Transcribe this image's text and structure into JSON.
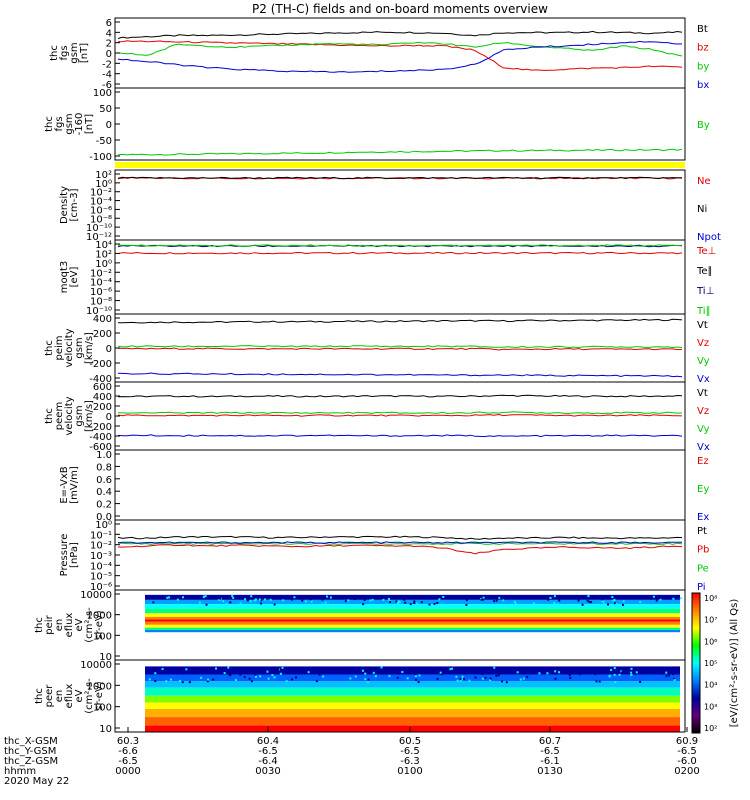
{
  "title": "P2 (TH-C) fields and on-board moments overview",
  "colors": {
    "black": "#000000",
    "red": "#e00000",
    "green": "#00c800",
    "blue": "#0000d0",
    "yellow": "#ffff00"
  },
  "chart_data": [
    {
      "type": "line",
      "ylabel": [
        "thc",
        "fgs",
        "gsm",
        "[nT]"
      ],
      "yticks": [
        "6",
        "4",
        "2",
        "0",
        "-2",
        "-4",
        "-6"
      ],
      "ylim": [
        -6,
        6
      ],
      "series": [
        {
          "name": "Bt",
          "color": "#000000",
          "values": [
            2.6,
            2.8,
            3.0,
            3.0,
            3.1,
            3.2,
            3.3,
            3.4,
            3.5,
            3.6,
            3.5,
            3.4,
            3.0,
            3.5,
            3.5,
            3.5,
            3.6,
            3.5,
            3.4,
            3.6
          ]
        },
        {
          "name": "bz",
          "color": "#e00000",
          "values": [
            2.0,
            2.0,
            1.9,
            1.8,
            1.7,
            1.6,
            1.5,
            1.4,
            1.3,
            1.2,
            1.3,
            1.2,
            0.5,
            -2.5,
            -3.0,
            -2.8,
            -2.6,
            -2.5,
            -2.3,
            -2.4
          ]
        },
        {
          "name": "by",
          "color": "#00c800",
          "values": [
            0.0,
            -0.4,
            1.5,
            1.2,
            1.0,
            1.2,
            1.4,
            1.6,
            1.5,
            1.4,
            1.8,
            1.6,
            1.0,
            1.8,
            1.2,
            0.8,
            0.4,
            1.2,
            0.6,
            -0.6
          ]
        },
        {
          "name": "bx",
          "color": "#0000d0",
          "values": [
            -1.0,
            -1.5,
            -2.0,
            -2.5,
            -2.8,
            -3.0,
            -3.2,
            -3.2,
            -3.3,
            -3.1,
            -3.0,
            -2.8,
            -2.0,
            0.5,
            1.0,
            1.2,
            1.5,
            1.8,
            2.0,
            1.5
          ]
        }
      ]
    },
    {
      "type": "line",
      "ylabel": [
        "thc",
        "fgs",
        "gsm",
        "-160",
        "[nT]"
      ],
      "yticks": [
        "100",
        "50",
        "0",
        "-50",
        "-100"
      ],
      "ylim": [
        -125,
        105
      ],
      "series": [
        {
          "name": "By",
          "color": "#00c800",
          "values": [
            -108,
            -107.5,
            -107,
            -106,
            -105,
            -104,
            -103,
            -102,
            -100,
            -99,
            -98,
            -97,
            -96,
            -95,
            -95,
            -94,
            -94,
            -93,
            -93,
            -92
          ]
        }
      ]
    },
    {
      "type": "line",
      "ylabel": [
        "Density",
        "[cm-3]"
      ],
      "yticks": [
        "10²",
        "10⁰",
        "10⁻²",
        "10⁻⁴",
        "10⁻⁶",
        "10⁻⁸",
        "10⁻¹⁰",
        "10⁻¹²"
      ],
      "ylim": [
        -12.5,
        2
      ],
      "log": true,
      "series": [
        {
          "name": "Ne",
          "color": "#e00000",
          "values": [
            0.3,
            0.3,
            0.3,
            0.3,
            0.3,
            0.3,
            0.3,
            0.3,
            0.3,
            0.3
          ]
        },
        {
          "name": "Ni",
          "color": "#000000",
          "values": [
            0.35,
            0.35,
            0.35,
            0.35,
            0.35,
            0.35,
            0.35,
            0.35,
            0.35,
            0.35
          ]
        },
        {
          "name": "Npot",
          "color": "#0000d0",
          "values": []
        }
      ]
    },
    {
      "type": "line",
      "ylabel": [
        "moqt3",
        "[eV]"
      ],
      "yticks": [
        "10⁴",
        "10²",
        "10⁰",
        "10⁻²",
        "10⁻⁴",
        "10⁻⁶",
        "10⁻⁸",
        "10⁻¹⁰"
      ],
      "ylim": [
        -10.5,
        4.2
      ],
      "log": true,
      "series": [
        {
          "name": "Te⊥",
          "color": "#e00000",
          "values": [
            1.6,
            1.6,
            1.6,
            1.6,
            1.6,
            1.6,
            1.6,
            1.6,
            1.6,
            1.6
          ]
        },
        {
          "name": "Te∥",
          "color": "#000000",
          "values": []
        },
        {
          "name": "Ti⊥",
          "color": "#000080",
          "values": [
            3.0,
            3.0,
            3.0,
            3.0,
            3.0,
            3.0,
            3.0,
            3.0,
            3.0,
            3.0
          ]
        },
        {
          "name": "Ti∥",
          "color": "#00c800",
          "values": [
            3.1,
            3.1,
            3.1,
            3.1,
            3.1,
            3.1,
            3.1,
            3.1,
            3.1,
            3.1
          ]
        }
      ]
    },
    {
      "type": "line",
      "ylabel": [
        "thc",
        "peim",
        "velocity",
        "gsm",
        "[km/s]"
      ],
      "yticks": [
        "400",
        "200",
        "0",
        "-200",
        "-400"
      ],
      "ylim": [
        -440,
        440
      ],
      "series": [
        {
          "name": "Vt",
          "color": "#000000",
          "values": [
            330,
            332,
            335,
            335,
            338,
            340,
            340,
            342,
            345,
            345,
            348,
            350,
            352,
            350,
            355,
            356,
            358,
            360,
            362,
            365
          ]
        },
        {
          "name": "Vz",
          "color": "#e00000",
          "values": [
            -10,
            -10,
            -8,
            -8,
            -10,
            -12,
            -10,
            -10,
            -12,
            -10,
            -10,
            -12,
            -10,
            -20,
            -15,
            -14,
            -15,
            -16,
            -15,
            -18
          ]
        },
        {
          "name": "Vy",
          "color": "#00c800",
          "values": [
            20,
            22,
            20,
            22,
            24,
            22,
            20,
            22,
            24,
            22,
            20,
            22,
            20,
            10,
            15,
            14,
            15,
            16,
            15,
            14
          ]
        },
        {
          "name": "Vx",
          "color": "#0000d0",
          "values": [
            -330,
            -332,
            -335,
            -335,
            -338,
            -340,
            -340,
            -342,
            -345,
            -345,
            -348,
            -350,
            -352,
            -350,
            -355,
            -356,
            -358,
            -360,
            -362,
            -365
          ]
        }
      ]
    },
    {
      "type": "line",
      "ylabel": [
        "thc",
        "peem",
        "velocity",
        "gsm",
        "[km/s]"
      ],
      "yticks": [
        "600",
        "400",
        "200",
        "0",
        "-200",
        "-400",
        "-600"
      ],
      "ylim": [
        -650,
        650
      ],
      "series": [
        {
          "name": "Vt",
          "color": "#000000",
          "values": [
            370,
            375,
            380,
            372,
            378,
            380,
            376,
            374,
            380,
            382,
            378,
            376,
            380,
            390,
            385,
            380,
            378,
            376,
            380,
            382
          ]
        },
        {
          "name": "Vz",
          "color": "#e00000",
          "values": [
            10,
            12,
            8,
            10,
            12,
            10,
            8,
            10,
            12,
            10,
            8,
            10,
            12,
            20,
            15,
            10,
            8,
            10,
            12,
            10
          ]
        },
        {
          "name": "Vy",
          "color": "#00c800",
          "values": [
            60,
            62,
            58,
            60,
            62,
            60,
            58,
            60,
            62,
            60,
            58,
            60,
            62,
            70,
            65,
            60,
            58,
            60,
            62,
            60
          ]
        },
        {
          "name": "Vx",
          "color": "#0000d0",
          "values": [
            -370,
            -372,
            -378,
            -370,
            -376,
            -378,
            -374,
            -372,
            -378,
            -380,
            -376,
            -374,
            -378,
            -388,
            -382,
            -378,
            -376,
            -374,
            -378,
            -380
          ]
        }
      ]
    },
    {
      "type": "line",
      "ylabel": [
        "E=-VxB",
        "[mV/m]"
      ],
      "yticks": [
        "1.0",
        "0.8",
        "0.6",
        "0.4",
        "0.2",
        "0.0"
      ],
      "ylim": [
        0,
        1
      ],
      "series": [
        {
          "name": "Ez",
          "color": "#e00000",
          "values": []
        },
        {
          "name": "Ey",
          "color": "#00c800",
          "values": []
        },
        {
          "name": "Ex",
          "color": "#0000d0",
          "values": []
        }
      ]
    },
    {
      "type": "line",
      "ylabel": [
        "Pressure",
        "[nPa]"
      ],
      "yticks": [
        "10⁰",
        "10⁻¹",
        "10⁻²",
        "10⁻³",
        "10⁻⁴",
        "10⁻⁵",
        "10⁻⁶"
      ],
      "ylim": [
        -6.2,
        0
      ],
      "log": true,
      "series": [
        {
          "name": "Pt",
          "color": "#000000",
          "values": [
            -1.6,
            -1.6,
            -1.5,
            -1.5,
            -1.5,
            -1.55,
            -1.55,
            -1.5,
            -1.5,
            -1.5,
            -1.5,
            -1.55,
            -1.7,
            -1.6,
            -1.6,
            -1.55,
            -1.6,
            -1.6,
            -1.6,
            -1.55
          ]
        },
        {
          "name": "Pb",
          "color": "#e00000",
          "values": [
            -2.4,
            -2.3,
            -2.2,
            -2.3,
            -2.25,
            -2.3,
            -2.35,
            -2.3,
            -2.25,
            -2.3,
            -2.3,
            -2.5,
            -3.0,
            -2.6,
            -2.5,
            -2.4,
            -2.45,
            -2.5,
            -2.4,
            -2.3
          ]
        },
        {
          "name": "Pe",
          "color": "#00c800",
          "values": [
            -2.1,
            -2.1,
            -2.1,
            -2.1,
            -2.1,
            -2.1,
            -2.1,
            -2.1,
            -2.1,
            -2.1,
            -2.1,
            -2.1,
            -2.1,
            -2.1,
            -2.1,
            -2.1,
            -2.1,
            -2.1,
            -2.1,
            -2.1
          ]
        },
        {
          "name": "Pi",
          "color": "#0000d0",
          "values": [
            -2.0,
            -2.0,
            -2.0,
            -2.0,
            -2.0,
            -2.0,
            -2.0,
            -2.0,
            -2.0,
            -2.0,
            -2.0,
            -2.0,
            -2.0,
            -2.0,
            -2.0,
            -2.0,
            -2.0,
            -2.0,
            -2.0,
            -2.0
          ]
        }
      ]
    },
    {
      "type": "heatmap",
      "ylabel": [
        "thc",
        "peir",
        "en",
        "eflux",
        "eV",
        "(cm²-s-",
        "sr-eV)"
      ],
      "yticks": [
        "10000",
        "1000",
        "100",
        "10"
      ],
      "ylim": [
        5,
        12000
      ],
      "log": true,
      "data_range": [
        10,
        9000
      ]
    },
    {
      "type": "heatmap",
      "ylabel": [
        "thc",
        "peer",
        "en",
        "eflux",
        "eV",
        "(cm²-s-",
        "sr-eV)"
      ],
      "yticks": [
        "10000",
        "1000",
        "100",
        "10"
      ],
      "ylim": [
        5,
        12000
      ],
      "log": true,
      "data_range": [
        10,
        7000
      ]
    }
  ],
  "colorbar": {
    "label": "[eV/(cm²-s-sr-eV)] (All Qs)",
    "ticks": [
      "10⁸",
      "10⁷",
      "10⁶",
      "10⁵",
      "10⁴",
      "10³",
      "10²"
    ],
    "stops": [
      "#ff0000",
      "#ff8000",
      "#ffff00",
      "#00ff00",
      "#00ffff",
      "#0080ff",
      "#0000a0",
      "#600080",
      "#000000"
    ]
  },
  "x_axis": {
    "rows": [
      {
        "label": "thc_X-GSM",
        "values": [
          "60.3",
          "60.4",
          "60.5",
          "60.7",
          "60.9"
        ]
      },
      {
        "label": "thc_Y-GSM",
        "values": [
          "-6.6",
          "-6.5",
          "-6.5",
          "-6.5",
          "-6.5"
        ]
      },
      {
        "label": "thc_Z-GSM",
        "values": [
          "-6.5",
          "-6.4",
          "-6.3",
          "-6.1",
          "-6.0"
        ]
      },
      {
        "label": "hhmm",
        "values": [
          "0000",
          "0030",
          "0100",
          "0130",
          "0200"
        ]
      }
    ],
    "date": "2020 May 22"
  }
}
